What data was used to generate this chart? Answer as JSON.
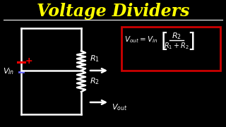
{
  "title": "Voltage Dividers",
  "title_color": "#FFFF00",
  "bg_color": "#000000",
  "circuit_color": "#FFFFFF",
  "formula_box_color": "#CC0000",
  "formula_text": "V_out = V_in [R2 / (R1+R2)]",
  "vin_label": "V_In",
  "vout_label": "V_out",
  "r1_label": "R_1",
  "r2_label": "R_2",
  "plus_color": "#FF0000",
  "minus_color": "#0000FF",
  "separator_color": "#FFFFFF"
}
